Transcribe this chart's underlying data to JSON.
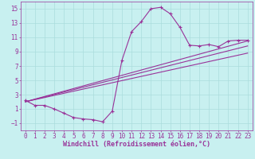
{
  "background_color": "#c8f0f0",
  "grid_color": "#aadddd",
  "line_color": "#993399",
  "marker_color": "#993399",
  "xlabel": "Windchill (Refroidissement éolien,°C)",
  "xlim": [
    -0.5,
    23.5
  ],
  "ylim": [
    -2.0,
    16.0
  ],
  "yticks": [
    -1,
    1,
    3,
    5,
    7,
    9,
    11,
    13,
    15
  ],
  "xticks": [
    0,
    1,
    2,
    3,
    4,
    5,
    6,
    7,
    8,
    9,
    10,
    11,
    12,
    13,
    14,
    15,
    16,
    17,
    18,
    19,
    20,
    21,
    22,
    23
  ],
  "main_x": [
    0,
    1,
    2,
    3,
    4,
    5,
    6,
    7,
    8,
    9,
    10,
    11,
    12,
    13,
    14,
    15,
    16,
    17,
    18,
    19,
    20,
    21,
    22,
    23
  ],
  "main_y": [
    2.2,
    1.5,
    1.5,
    1.0,
    0.4,
    -0.2,
    -0.4,
    -0.5,
    -0.8,
    0.7,
    7.8,
    11.8,
    13.2,
    15.0,
    15.2,
    14.3,
    12.4,
    9.9,
    9.8,
    10.0,
    9.7,
    10.5,
    10.6,
    10.6
  ],
  "line1_x": [
    0,
    23
  ],
  "line1_y": [
    2.0,
    8.8
  ],
  "line2_x": [
    0,
    23
  ],
  "line2_y": [
    2.0,
    9.8
  ],
  "line3_x": [
    0,
    23
  ],
  "line3_y": [
    2.0,
    10.5
  ],
  "font_size_xlabel": 6,
  "font_size_ticks": 5.5
}
